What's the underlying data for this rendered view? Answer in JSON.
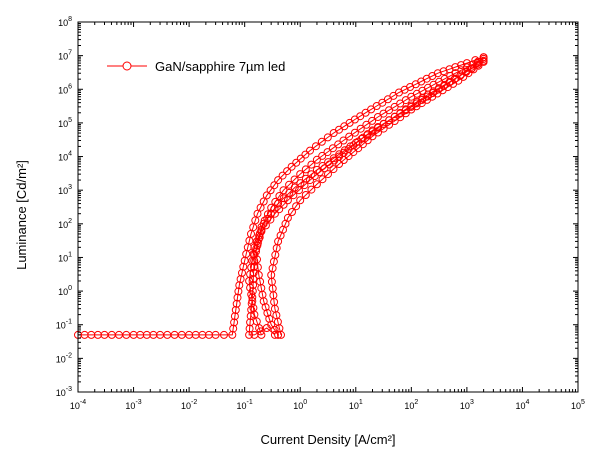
{
  "chart_data": {
    "type": "scatter",
    "xlabel": "Current Density [A/cm²]",
    "ylabel": "Luminance [Cd/m²]",
    "xscale": "log",
    "yscale": "log",
    "xlim": [
      0.0001,
      100000
    ],
    "ylim": [
      0.001,
      100000000
    ],
    "x_ticks": [
      {
        "value": 0.0001,
        "base": "10",
        "exp": "-4"
      },
      {
        "value": 0.001,
        "base": "10",
        "exp": "-3"
      },
      {
        "value": 0.01,
        "base": "10",
        "exp": "-2"
      },
      {
        "value": 0.1,
        "base": "10",
        "exp": "-1"
      },
      {
        "value": 1,
        "base": "10",
        "exp": "0"
      },
      {
        "value": 10,
        "base": "10",
        "exp": "1"
      },
      {
        "value": 100,
        "base": "10",
        "exp": "2"
      },
      {
        "value": 1000,
        "base": "10",
        "exp": "3"
      },
      {
        "value": 10000,
        "base": "10",
        "exp": "4"
      },
      {
        "value": 100000,
        "base": "10",
        "exp": "5"
      }
    ],
    "y_ticks": [
      {
        "value": 0.001,
        "base": "10",
        "exp": "-3"
      },
      {
        "value": 0.01,
        "base": "10",
        "exp": "-2"
      },
      {
        "value": 0.1,
        "base": "10",
        "exp": "-1"
      },
      {
        "value": 1,
        "base": "10",
        "exp": "0"
      },
      {
        "value": 10,
        "base": "10",
        "exp": "1"
      },
      {
        "value": 100,
        "base": "10",
        "exp": "2"
      },
      {
        "value": 1000,
        "base": "10",
        "exp": "3"
      },
      {
        "value": 10000,
        "base": "10",
        "exp": "4"
      },
      {
        "value": 100000,
        "base": "10",
        "exp": "5"
      },
      {
        "value": 1000000,
        "base": "10",
        "exp": "6"
      },
      {
        "value": 10000000,
        "base": "10",
        "exp": "7"
      },
      {
        "value": 100000000,
        "base": "10",
        "exp": "8"
      }
    ],
    "grid": false,
    "legend_position": "top-left",
    "series": [
      {
        "name": "GaN/sapphire 7µm led",
        "color": "#ff0000",
        "marker": "open-circle",
        "sweeps": [
          [
            [
              0.0001,
              0.05
            ],
            [
              0.0003,
              0.05
            ],
            [
              0.001,
              0.05
            ],
            [
              0.003,
              0.05
            ],
            [
              0.01,
              0.05
            ],
            [
              0.03,
              0.05
            ],
            [
              0.06,
              0.05
            ],
            [
              0.08,
              1.5
            ],
            [
              0.1,
              8
            ],
            [
              0.13,
              50
            ],
            [
              0.17,
              200
            ],
            [
              0.25,
              700
            ],
            [
              0.4,
              2000
            ],
            [
              0.7,
              5000
            ],
            [
              1.5,
              15000
            ],
            [
              4,
              50000
            ],
            [
              15,
              200000
            ],
            [
              60,
              800000
            ],
            [
              300,
              3000000
            ],
            [
              1000,
              6000000
            ],
            [
              2000,
              9000000
            ]
          ],
          [
            [
              0.4,
              0.05
            ],
            [
              0.3,
              0.1
            ],
            [
              0.22,
              0.5
            ],
            [
              0.18,
              3
            ],
            [
              0.16,
              15
            ],
            [
              0.2,
              80
            ],
            [
              0.3,
              300
            ],
            [
              0.5,
              1000
            ],
            [
              1,
              3000
            ],
            [
              2,
              8000
            ],
            [
              6,
              30000
            ],
            [
              25,
              150000
            ],
            [
              100,
              600000
            ],
            [
              500,
              2500000
            ],
            [
              2000,
              8000000
            ]
          ],
          [
            [
              0.35,
              0.05
            ],
            [
              0.25,
              0.08
            ],
            [
              0.15,
              0.05
            ],
            [
              0.12,
              0.05
            ],
            [
              0.14,
              1
            ],
            [
              0.15,
              12
            ],
            [
              0.2,
              60
            ],
            [
              0.35,
              200
            ],
            [
              0.6,
              500
            ],
            [
              1.5,
              2000
            ],
            [
              5,
              10000
            ],
            [
              20,
              60000
            ],
            [
              100,
              300000
            ],
            [
              600,
              2000000
            ],
            [
              2000,
              7000000
            ]
          ],
          [
            [
              0.45,
              0.05
            ],
            [
              0.35,
              0.3
            ],
            [
              0.3,
              3
            ],
            [
              0.4,
              30
            ],
            [
              0.6,
              150
            ],
            [
              1,
              500
            ],
            [
              2,
              1500
            ],
            [
              5,
              6000
            ],
            [
              20,
              40000
            ],
            [
              100,
              250000
            ],
            [
              700,
              1800000
            ],
            [
              2000,
              6500000
            ]
          ],
          [
            [
              0.2,
              0.05
            ],
            [
              0.15,
              0.2
            ],
            [
              0.12,
              2
            ],
            [
              0.15,
              20
            ],
            [
              0.22,
              100
            ],
            [
              0.4,
              400
            ],
            [
              0.8,
              1200
            ],
            [
              2,
              4000
            ],
            [
              8,
              20000
            ],
            [
              40,
              120000
            ],
            [
              200,
              700000
            ],
            [
              1200,
              4000000
            ],
            [
              2000,
              9000000
            ]
          ]
        ]
      }
    ]
  }
}
